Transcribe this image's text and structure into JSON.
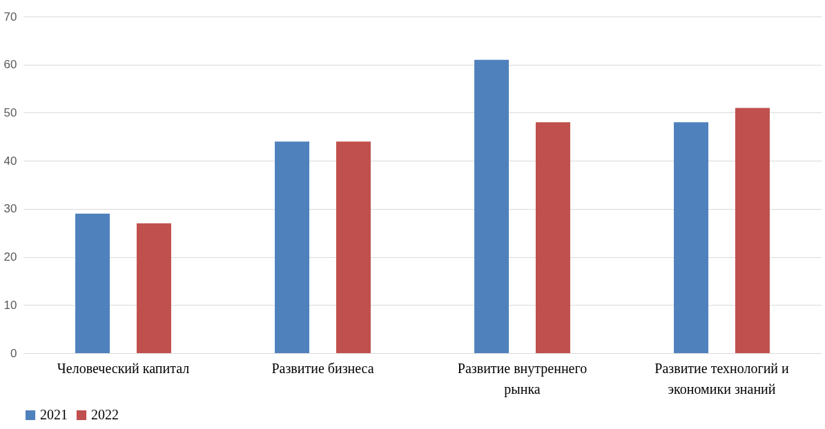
{
  "chart_data": {
    "type": "bar",
    "categories": [
      "Человеческий капитал",
      "Развитие бизнеса",
      "Развитие внутреннего рынка",
      "Развитие технологий и экономики знаний"
    ],
    "series": [
      {
        "name": "2021",
        "color": "#4f81bd",
        "values": [
          29,
          44,
          61,
          48
        ]
      },
      {
        "name": "2022",
        "color": "#c0504d",
        "values": [
          27,
          44,
          48,
          51
        ]
      }
    ],
    "ylim": [
      0,
      70
    ],
    "yticks": [
      0,
      10,
      20,
      30,
      40,
      50,
      60,
      70
    ],
    "grid": "y",
    "legend": "bottom"
  }
}
